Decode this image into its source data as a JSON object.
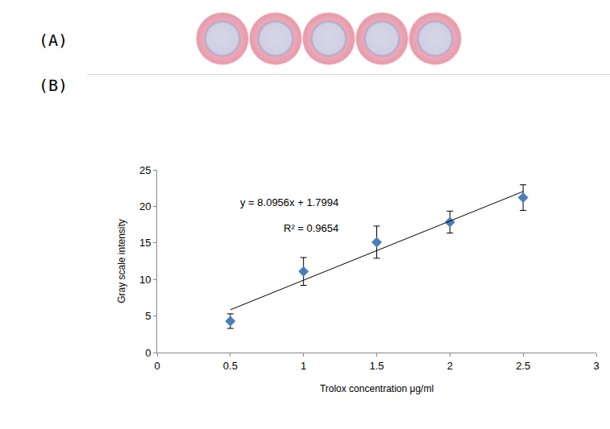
{
  "panel_labels": [
    "(A)",
    "(B)"
  ],
  "image_a": {
    "wells": 5
  },
  "chart_data": {
    "type": "scatter",
    "x_label": "Trolox concentration μg/ml",
    "y_label": "Gray scale intensity",
    "xlim": [
      0,
      3
    ],
    "xticks": [
      0,
      0.5,
      1,
      1.5,
      2,
      2.5,
      3
    ],
    "ylim": [
      0,
      25
    ],
    "yticks": [
      0,
      5,
      10,
      15,
      20,
      25
    ],
    "grid": false,
    "series": [
      {
        "type": "scatter",
        "marker": "diamond",
        "color": "#4a7ebb",
        "x": [
          0.5,
          1,
          1.5,
          2,
          2.5
        ],
        "values": [
          4.3,
          11.1,
          15.1,
          17.85,
          21.2
        ],
        "error": [
          1.0,
          1.9,
          2.2,
          1.5,
          1.75
        ]
      },
      {
        "type": "line",
        "line_style": "solid",
        "color": "#000000",
        "x": [
          0.5,
          2.5
        ],
        "values": [
          5.85,
          22.04
        ]
      }
    ],
    "annotations": [
      {
        "text": "y = 8.0956x + 1.7994",
        "x": 0.9,
        "y": 20.5
      },
      {
        "text": "R² = 0.9654",
        "x": 1.05,
        "y": 17.0
      }
    ]
  }
}
